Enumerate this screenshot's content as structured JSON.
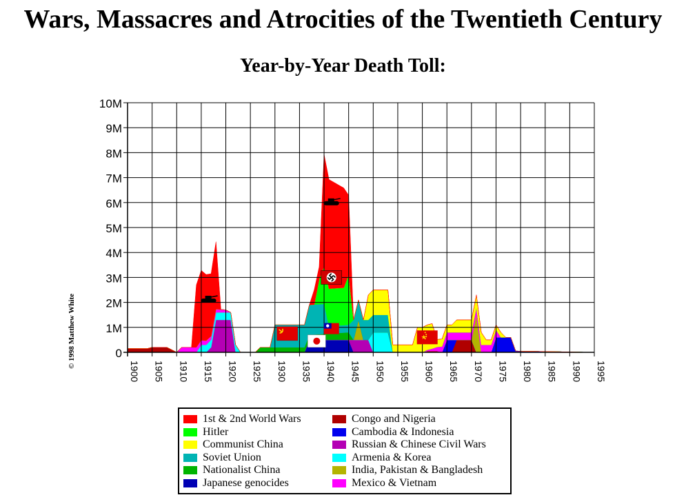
{
  "page": {
    "title": "Wars, Massacres and Atrocities of the Twentieth Century",
    "subtitle": "Year-by-Year Death Toll:",
    "credit": "© 1998 Matthew White"
  },
  "chart_data": {
    "type": "area",
    "stacked": true,
    "x_range": [
      1900,
      1995
    ],
    "ylim": [
      0,
      10000000
    ],
    "y_ticks": [
      0,
      1000000,
      2000000,
      3000000,
      4000000,
      5000000,
      6000000,
      7000000,
      8000000,
      9000000,
      10000000
    ],
    "y_tick_labels": [
      "0",
      "1M",
      "2M",
      "3M",
      "4M",
      "5M",
      "6M",
      "7M",
      "8M",
      "9M",
      "10M"
    ],
    "x_ticks": [
      1900,
      1905,
      1910,
      1915,
      1920,
      1925,
      1930,
      1935,
      1940,
      1945,
      1950,
      1955,
      1960,
      1965,
      1970,
      1975,
      1980,
      1985,
      1990,
      1995
    ],
    "x_tick_labels": [
      "1900",
      "1905",
      "1910",
      "1915",
      "1920",
      "1925",
      "1930",
      "1935",
      "1940",
      "1945",
      "1950",
      "1955",
      "1960",
      "1965",
      "1970",
      "1975",
      "1980",
      "1985",
      "1990",
      "1995"
    ],
    "grid": true,
    "legend_position": "bottom",
    "series": [
      {
        "name": "Congo and Nigeria",
        "color": "#b00000",
        "points": [
          [
            1900,
            0.15
          ],
          [
            1904,
            0.15
          ],
          [
            1905,
            0.2
          ],
          [
            1908,
            0.2
          ],
          [
            1909,
            0.1
          ],
          [
            1910,
            0
          ],
          [
            1960,
            0
          ],
          [
            1961,
            0.05
          ],
          [
            1963,
            0.05
          ],
          [
            1964,
            0
          ],
          [
            1966,
            0
          ],
          [
            1967,
            0.5
          ],
          [
            1970,
            0.5
          ],
          [
            1971,
            0
          ],
          [
            1995,
            0
          ]
        ]
      },
      {
        "name": "Cambodia & Indonesia",
        "color": "#0000ee",
        "points": [
          [
            1900,
            0
          ],
          [
            1964,
            0
          ],
          [
            1965,
            0.5
          ],
          [
            1966,
            0.5
          ],
          [
            1967,
            0
          ],
          [
            1974,
            0
          ],
          [
            1975,
            0.6
          ],
          [
            1978,
            0.6
          ],
          [
            1979,
            0.05
          ],
          [
            1995,
            0
          ]
        ]
      },
      {
        "name": "Japanese genocides",
        "color": "#0000b4",
        "points": [
          [
            1900,
            0
          ],
          [
            1936,
            0
          ],
          [
            1937,
            0.5
          ],
          [
            1945,
            0.5
          ],
          [
            1946,
            0
          ],
          [
            1995,
            0
          ]
        ]
      },
      {
        "name": "Russian & Chinese Civil Wars",
        "color": "#b400b4",
        "points": [
          [
            1900,
            0
          ],
          [
            1916,
            0
          ],
          [
            1917,
            0.2
          ],
          [
            1918,
            1.3
          ],
          [
            1921,
            1.3
          ],
          [
            1922,
            0
          ],
          [
            1945,
            0
          ],
          [
            1946,
            0.5
          ],
          [
            1949,
            0.5
          ],
          [
            1950,
            0
          ],
          [
            1995,
            0
          ]
        ]
      },
      {
        "name": "Armenia & Korea",
        "color": "#00ffff",
        "points": [
          [
            1900,
            0
          ],
          [
            1914,
            0
          ],
          [
            1915,
            0.3
          ],
          [
            1922,
            0.3
          ],
          [
            1923,
            0
          ],
          [
            1949,
            0
          ],
          [
            1950,
            0.8
          ],
          [
            1953,
            0.8
          ],
          [
            1954,
            0
          ],
          [
            1995,
            0
          ]
        ]
      },
      {
        "name": "India, Pakistan & Bangladesh",
        "color": "#b4b400",
        "points": [
          [
            1900,
            0
          ],
          [
            1946,
            0
          ],
          [
            1947,
            0.8
          ],
          [
            1948,
            0
          ],
          [
            1970,
            0
          ],
          [
            1971,
            1.5
          ],
          [
            1972,
            0
          ],
          [
            1995,
            0
          ]
        ]
      },
      {
        "name": "Mexico & Vietnam",
        "color": "#ff00ff",
        "points": [
          [
            1900,
            0
          ],
          [
            1910,
            0
          ],
          [
            1911,
            0.2
          ],
          [
            1914,
            0.2
          ],
          [
            1920,
            0.1
          ],
          [
            1921,
            0
          ],
          [
            1960,
            0
          ],
          [
            1962,
            0.1
          ],
          [
            1965,
            0.3
          ],
          [
            1975,
            0.3
          ],
          [
            1976,
            0
          ],
          [
            1995,
            0
          ]
        ]
      },
      {
        "name": "Nationalist China",
        "color": "#00b400",
        "points": [
          [
            1900,
            0
          ],
          [
            1926,
            0
          ],
          [
            1927,
            0.2
          ],
          [
            1937,
            0.2
          ],
          [
            1945,
            0.3
          ],
          [
            1946,
            0
          ],
          [
            1995,
            0
          ]
        ]
      },
      {
        "name": "Soviet Union",
        "color": "#00b4b4",
        "points": [
          [
            1900,
            0
          ],
          [
            1929,
            0
          ],
          [
            1930,
            0.9
          ],
          [
            1936,
            0.9
          ],
          [
            1937,
            1.2
          ],
          [
            1940,
            1.2
          ],
          [
            1941,
            0.3
          ],
          [
            1945,
            0.3
          ],
          [
            1946,
            0.8
          ],
          [
            1949,
            0.8
          ],
          [
            1950,
            0.7
          ],
          [
            1953,
            0.7
          ],
          [
            1954,
            0
          ],
          [
            1995,
            0
          ]
        ]
      },
      {
        "name": "Hitler",
        "color": "#00ff00",
        "points": [
          [
            1900,
            0
          ],
          [
            1938,
            0
          ],
          [
            1939,
            1.0
          ],
          [
            1940,
            1.5
          ],
          [
            1944,
            1.5
          ],
          [
            1945,
            2.0
          ],
          [
            1946,
            0
          ],
          [
            1995,
            0
          ]
        ]
      },
      {
        "name": "Communist China",
        "color": "#ffff00",
        "points": [
          [
            1900,
            0
          ],
          [
            1948,
            0
          ],
          [
            1949,
            1.0
          ],
          [
            1953,
            1.0
          ],
          [
            1954,
            0.3
          ],
          [
            1958,
            0.3
          ],
          [
            1959,
            1.0
          ],
          [
            1962,
            1.0
          ],
          [
            1963,
            0.3
          ],
          [
            1966,
            0.3
          ],
          [
            1967,
            0.5
          ],
          [
            1972,
            0.5
          ],
          [
            1973,
            0.2
          ],
          [
            1976,
            0.2
          ],
          [
            1977,
            0
          ],
          [
            1995,
            0
          ]
        ]
      },
      {
        "name": "1st & 2nd World Wars",
        "color": "#ff0000",
        "points": [
          [
            1900,
            0
          ],
          [
            1913,
            0
          ],
          [
            1914,
            2.5
          ],
          [
            1915,
            2.8
          ],
          [
            1917,
            2.5
          ],
          [
            1918,
            2.7
          ],
          [
            1919,
            0
          ],
          [
            1937,
            0
          ],
          [
            1938,
            0.6
          ],
          [
            1939,
            0.5
          ],
          [
            1940,
            4.5
          ],
          [
            1944,
            4.0
          ],
          [
            1945,
            3.2
          ],
          [
            1946,
            0
          ],
          [
            1995,
            0
          ]
        ]
      }
    ],
    "legend": [
      {
        "name": "1st & 2nd World Wars",
        "color": "#ff0000"
      },
      {
        "name": "Hitler",
        "color": "#00ff00"
      },
      {
        "name": "Communist China",
        "color": "#ffff00"
      },
      {
        "name": "Soviet Union",
        "color": "#00b4b4"
      },
      {
        "name": "Nationalist China",
        "color": "#00b400"
      },
      {
        "name": "Japanese genocides",
        "color": "#0000b4"
      },
      {
        "name": "Congo and Nigeria",
        "color": "#b00000"
      },
      {
        "name": "Cambodia & Indonesia",
        "color": "#0000ee"
      },
      {
        "name": "Russian & Chinese Civil Wars",
        "color": "#b400b4"
      },
      {
        "name": "Armenia & Korea",
        "color": "#00ffff"
      },
      {
        "name": "India, Pakistan & Bangladesh",
        "color": "#b4b400"
      },
      {
        "name": "Mexico & Vietnam",
        "color": "#ff00ff"
      }
    ],
    "icons": [
      {
        "name": "tank-icon",
        "x": 1916.5,
        "y": 2.1
      },
      {
        "name": "tank-icon",
        "x": 1941.5,
        "y": 6.0
      },
      {
        "name": "swastika-flag-icon",
        "x": 1941.5,
        "y": 3.0
      },
      {
        "name": "soviet-flag-icon",
        "x": 1932.5,
        "y": 0.75
      },
      {
        "name": "japanese-flag-icon",
        "x": 1938.5,
        "y": 0.45
      },
      {
        "name": "nationalist-china-flag-icon",
        "x": 1941.5,
        "y": 0.95
      },
      {
        "name": "prc-flag-icon",
        "x": 1961,
        "y": 0.6
      }
    ],
    "y_units": "millions"
  }
}
